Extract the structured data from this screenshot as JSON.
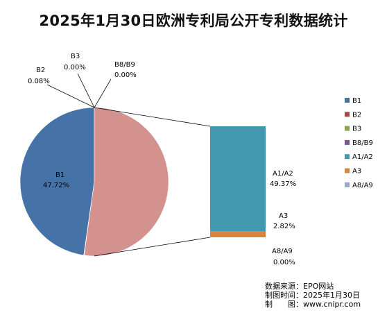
{
  "chart_data": {
    "type": "pie",
    "title": "2025年1月30日欧洲专利局公开专利数据统计",
    "pie_slices": [
      {
        "name": "B1",
        "value": 47.72,
        "label": "47.72%",
        "color": "#4572A7"
      },
      {
        "name": "B2",
        "value": 0.08,
        "label": "0.08%",
        "color": "#AA4643"
      },
      {
        "name": "B3",
        "value": 0.0,
        "label": "0.00%",
        "color": "#89A54E"
      },
      {
        "name": "B8/B9",
        "value": 0.0,
        "label": "0.00%",
        "color": "#71588F"
      },
      {
        "name": "A1/A2 + A3 + A8/A9",
        "value": 52.19,
        "color": "#D4928F"
      }
    ],
    "bar_segments": [
      {
        "name": "A1/A2",
        "value": 49.37,
        "label": "49.37%",
        "color": "#4198AF"
      },
      {
        "name": "A3",
        "value": 2.82,
        "label": "2.82%",
        "color": "#DB843D"
      },
      {
        "name": "A8/A9",
        "value": 0.0,
        "label": "0.00%",
        "color": "#93A9CF"
      }
    ],
    "legend": {
      "placement": "right",
      "items": [
        {
          "name": "B1",
          "color": "#4572A7"
        },
        {
          "name": "B2",
          "color": "#AA4643"
        },
        {
          "name": "B3",
          "color": "#89A54E"
        },
        {
          "name": "B8/B9",
          "color": "#71588F"
        },
        {
          "name": "A1/A2",
          "color": "#4198AF"
        },
        {
          "name": "A3",
          "color": "#DB843D"
        },
        {
          "name": "A8/A9",
          "color": "#93A9CF"
        }
      ]
    }
  },
  "source": {
    "line1": "数据来源：EPO网站",
    "line2": "制图时间：2025年1月30日",
    "line3": "制　　图：www.cnipr.com"
  }
}
